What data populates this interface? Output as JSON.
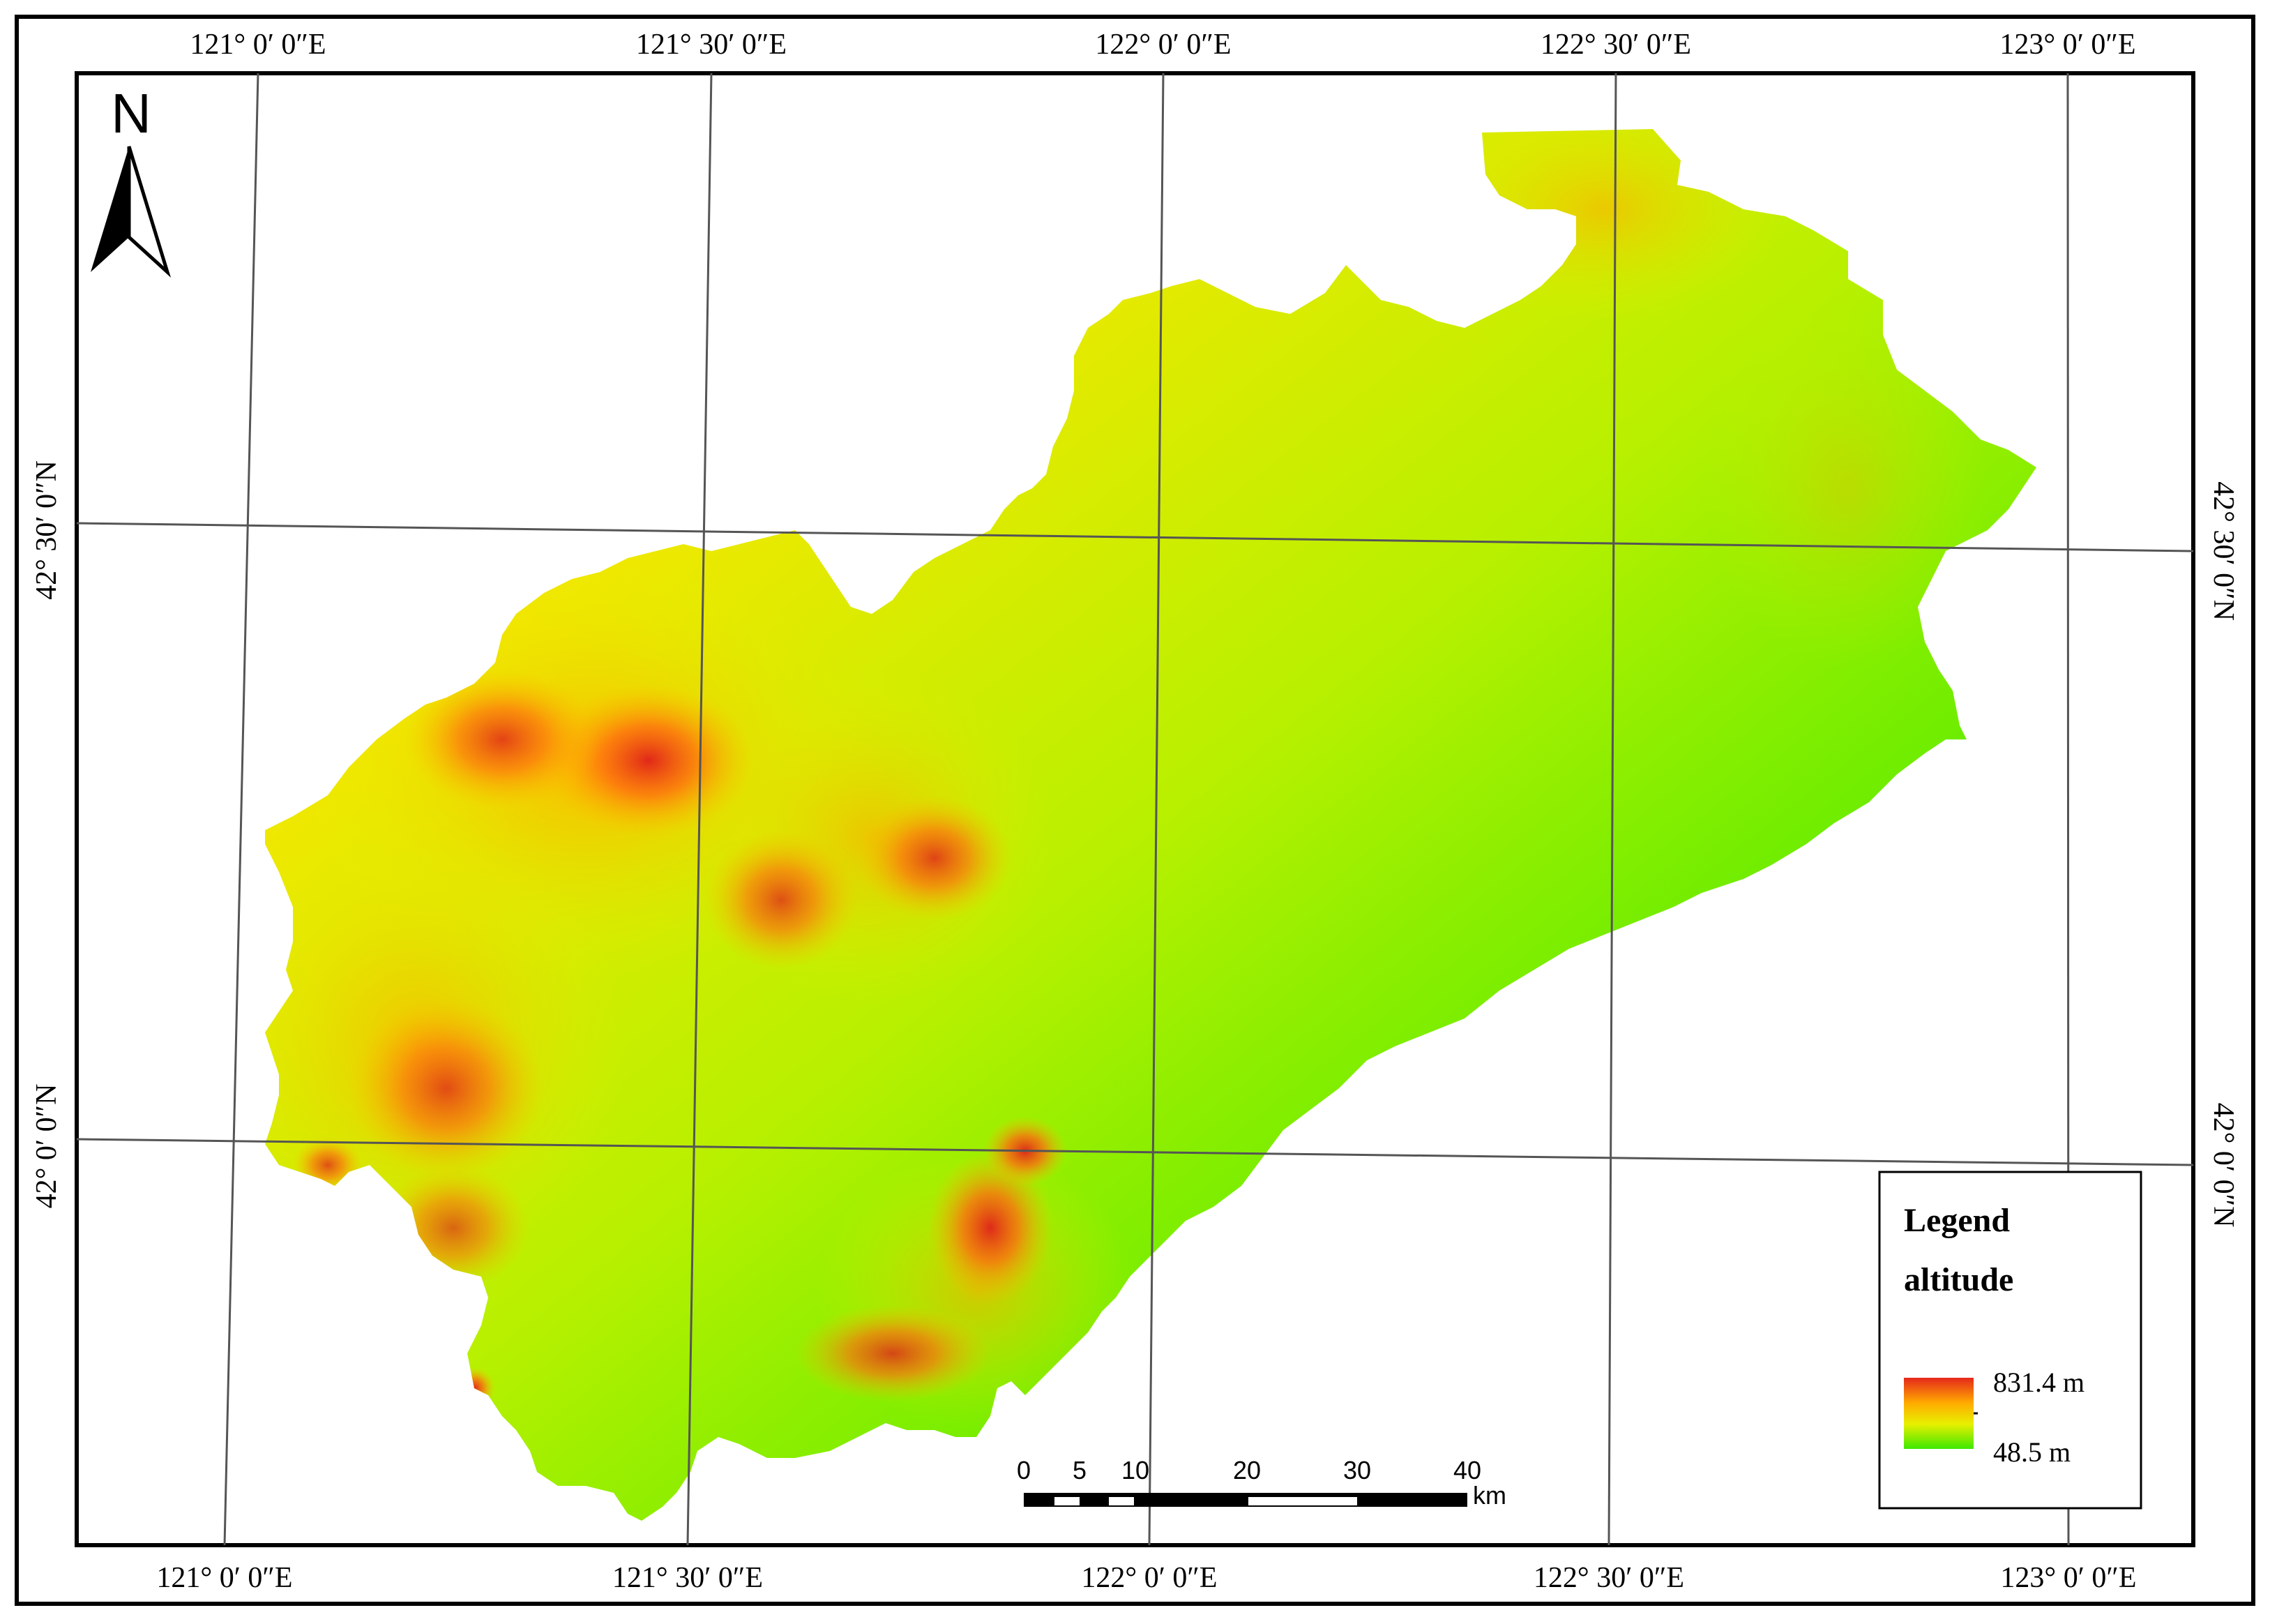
{
  "map": {
    "north_label": "N",
    "top_lon_labels": [
      "121° 0′ 0″E",
      "121° 30′ 0″E",
      "122° 0′ 0″E",
      "122° 30′ 0″E",
      "123° 0′ 0″E"
    ],
    "bottom_lon_labels": [
      "121° 0′ 0″E",
      "121° 30′ 0″E",
      "122° 0′ 0″E",
      "122° 30′ 0″E",
      "123° 0′ 0″E"
    ],
    "left_lat_labels": [
      "42° 30′ 0″N",
      "42° 0′ 0″N"
    ],
    "right_lat_labels": [
      "42° 30′ 0″N",
      "42° 0′ 0″N"
    ]
  },
  "legend": {
    "title": "Legend",
    "subtitle": "altitude",
    "max_label": "831.4 m",
    "min_label": "48.5 m",
    "gradient_colors": [
      "#e5281b",
      "#ffaa00",
      "#e8f000",
      "#3ee800"
    ]
  },
  "scale_bar": {
    "ticks": [
      "0",
      "5",
      "10",
      "20",
      "30",
      "40"
    ],
    "unit": "km"
  },
  "colors": {
    "low": "#32e600",
    "mid": "#c8f000",
    "high_mid": "#ffb000",
    "high": "#e8281a"
  }
}
